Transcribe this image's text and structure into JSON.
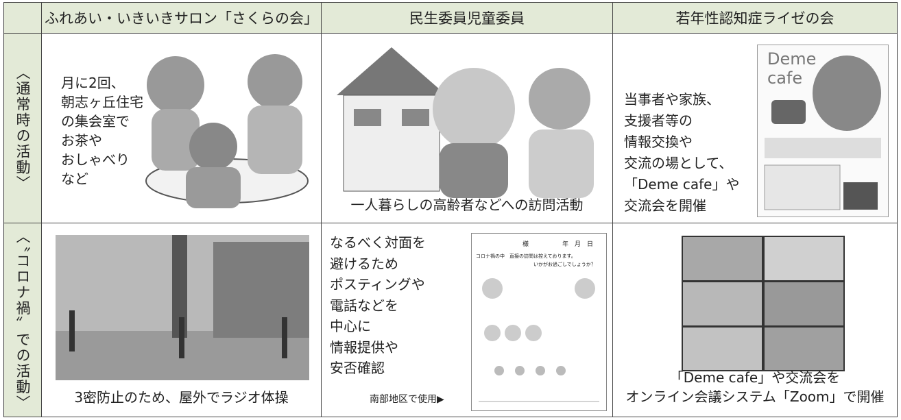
{
  "header": {
    "columns": [
      "ふれあい・いきいきサロン「さくらの会」",
      "民生委員児童委員",
      "若年性認知症ライゼの会"
    ]
  },
  "rows": [
    {
      "label": "〈通常時の活動〉",
      "cells": [
        {
          "lines": [
            "月に2回、",
            "朝志ヶ丘住宅",
            "の集会室で",
            "お茶や",
            "おしゃべり",
            "など"
          ]
        },
        {
          "lines": [
            "一人暮らしの高齢者などへの訪問活動"
          ]
        },
        {
          "lines": [
            "当事者や家族、",
            "支援者等の",
            "情報交換や",
            "交流の場として、",
            "「Deme cafe」や",
            "交流会を開催"
          ],
          "poster": [
            "Deme",
            "cafe"
          ]
        }
      ]
    },
    {
      "label": "〈〝コロナ禍〟での活動〉",
      "cells": [
        {
          "lines": [
            "3密防止のため、屋外でラジオ体操"
          ]
        },
        {
          "lines": [
            "なるべく対面を",
            "避けるため",
            "ポスティングや",
            "電話などを",
            "中心に",
            "情報提供や",
            "安否確認"
          ],
          "caption": "南部地区で使用▶",
          "flyer": [
            "様",
            "年　月　日",
            "コロナ禍の中　直接の訪問は控えております。",
            "いかがお過ごしでしょうか？"
          ]
        },
        {
          "lines": [
            "「Deme cafe」や交流会を",
            "オンライン会議システム「Zoom」で開催"
          ]
        }
      ]
    }
  ]
}
